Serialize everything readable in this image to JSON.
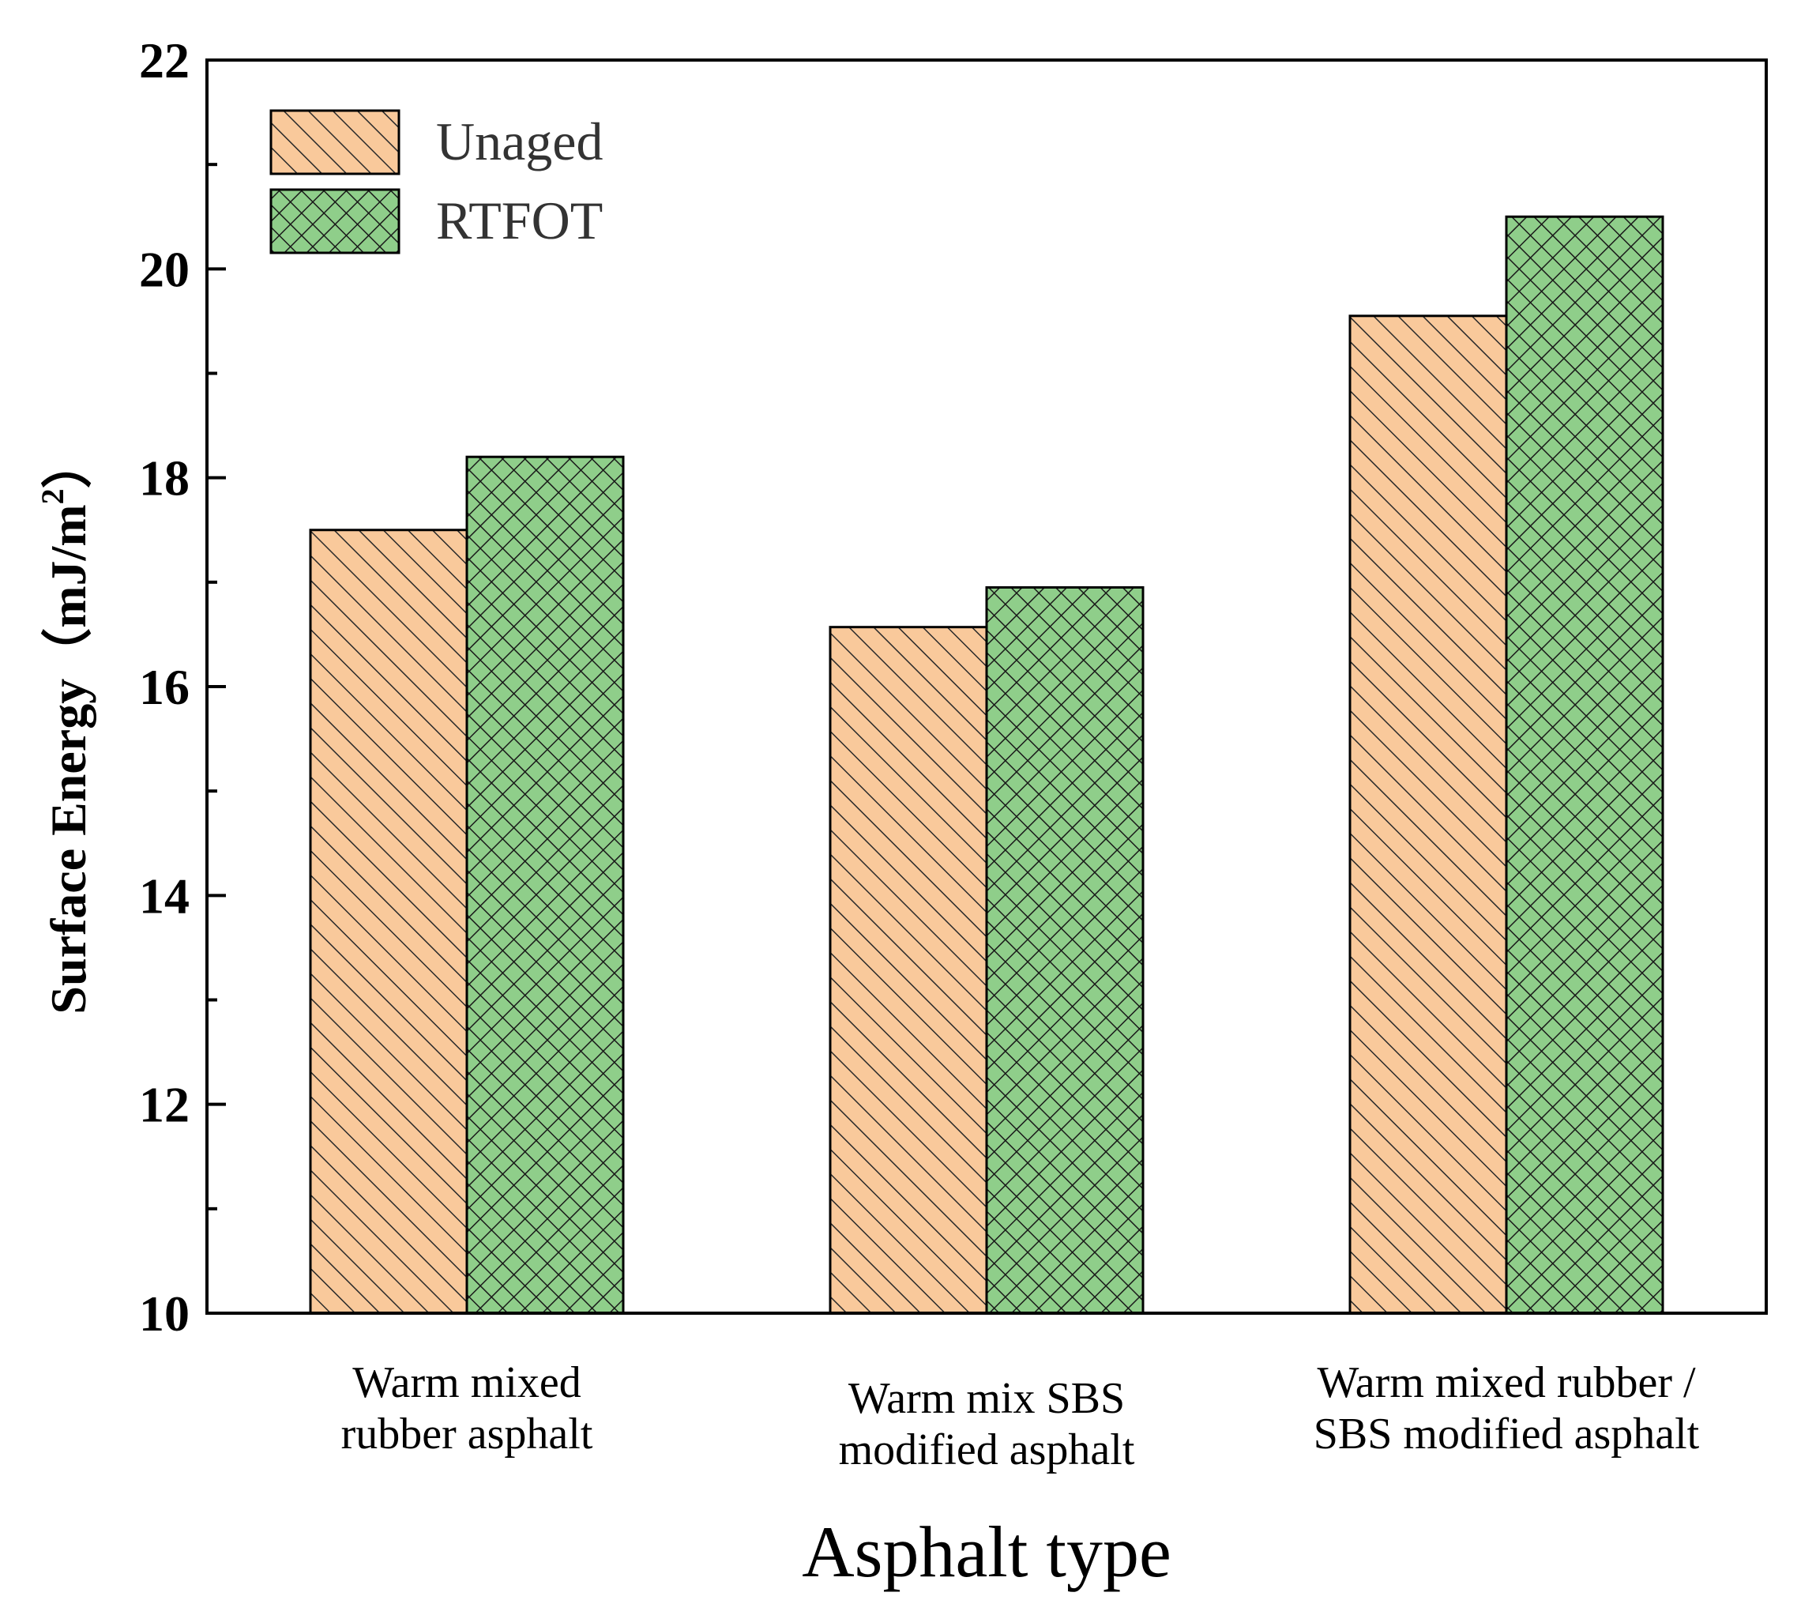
{
  "chart_data": {
    "type": "bar",
    "title": "",
    "xlabel": "Asphalt type",
    "ylabel": "Surface Energy (mJ/m²)",
    "ylabel_parts": {
      "main": "Surface Energy（mJ/m",
      "sup": "2",
      "end": "）"
    },
    "ylim": [
      10,
      22
    ],
    "yticks": [
      10,
      12,
      14,
      16,
      18,
      20,
      22
    ],
    "categories": [
      [
        "Warm mixed",
        "rubber asphalt"
      ],
      [
        "Warm mix SBS",
        "modified asphalt"
      ],
      [
        "Warm mixed rubber /",
        "SBS modified asphalt"
      ]
    ],
    "series": [
      {
        "name": "Unaged",
        "values": [
          17.5,
          16.57,
          19.55
        ],
        "color": "#f9c99b",
        "hatch": "diagonal"
      },
      {
        "name": "RTFOT",
        "values": [
          18.2,
          16.95,
          20.5
        ],
        "color": "#8fce8a",
        "hatch": "crosshatch"
      }
    ],
    "legend_position": "top-left",
    "grid": false
  }
}
